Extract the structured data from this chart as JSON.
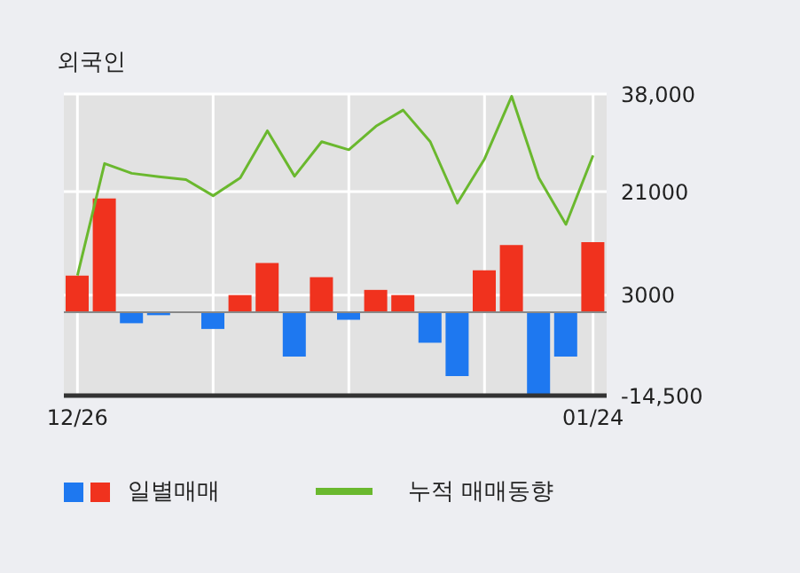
{
  "chart_data": {
    "type": "bar",
    "title": "외국인",
    "categories": [
      "12/26",
      null,
      null,
      null,
      null,
      null,
      null,
      null,
      null,
      null,
      null,
      null,
      null,
      null,
      null,
      null,
      null,
      null,
      null,
      "01/24"
    ],
    "series": [
      {
        "name": "일별매매",
        "colors": [
          "#f0321e",
          "#f0321e",
          "#1e78f0",
          "#1e78f0",
          "#f0321e",
          "#1e78f0",
          "#f0321e",
          "#f0321e",
          "#1e78f0",
          "#f0321e",
          "#1e78f0",
          "#f0321e",
          "#f0321e",
          "#1e78f0",
          "#1e78f0",
          "#f0321e",
          "#f0321e",
          "#1e78f0",
          "#1e78f0",
          "#f0321e"
        ],
        "values": [
          6400,
          19800,
          -1900,
          -500,
          0,
          -2900,
          3000,
          8600,
          -7700,
          6100,
          -1300,
          3900,
          3000,
          -5300,
          -11100,
          7300,
          11700,
          -14200,
          -7700,
          12200
        ]
      },
      {
        "name": "누적 매매동향",
        "type": "line",
        "color": "#6ab82e",
        "values": [
          6400,
          25900,
          24200,
          23600,
          23100,
          20300,
          23400,
          31600,
          23700,
          29700,
          28300,
          32400,
          35200,
          29700,
          19000,
          26700,
          37600,
          23400,
          15300,
          27300
        ]
      }
    ],
    "ylim": [
      -14500,
      38000
    ],
    "yticks": [
      {
        "value": -14500,
        "label": "-14,500"
      },
      3000,
      21000,
      {
        "value": 38000,
        "label": "38,000"
      }
    ],
    "ref_lines": [
      {
        "axis": "y",
        "value": 0,
        "color": "#888888"
      }
    ],
    "grid": true,
    "legend": "bottom"
  }
}
